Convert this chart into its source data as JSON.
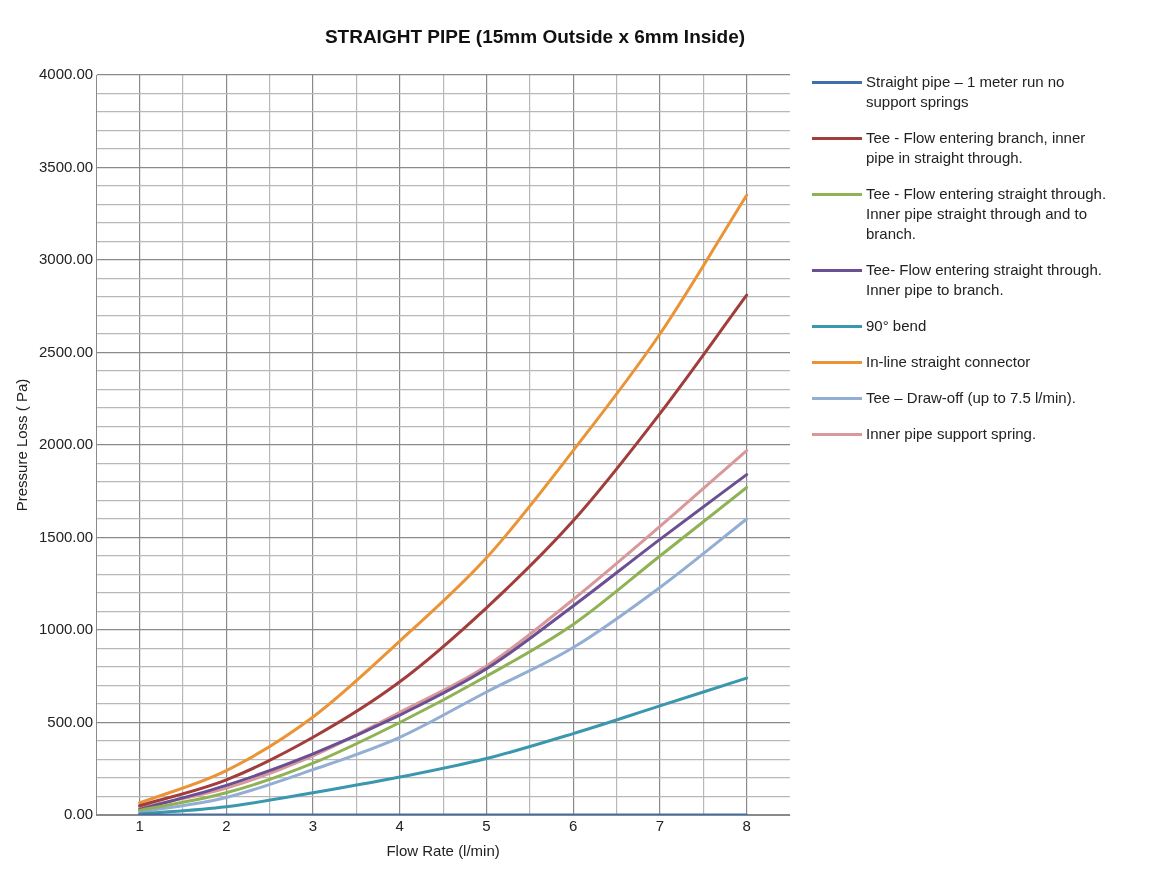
{
  "chart_data": {
    "type": "line",
    "title": "STRAIGHT PIPE (15mm Outside x 6mm Inside)",
    "xlabel": "Flow Rate (l/min)",
    "ylabel": "Pressure Loss ( Pa)",
    "x": [
      1,
      2,
      3,
      4,
      5,
      6,
      7,
      8
    ],
    "xlim": [
      0.5,
      8.5
    ],
    "xticks": [
      1,
      {
        "value": 1.5,
        "label": null
      },
      2,
      {
        "value": 2.5,
        "label": null
      },
      3,
      {
        "value": 3.5,
        "label": null
      },
      4,
      {
        "value": 4.5,
        "label": null
      },
      5,
      {
        "value": 5.5,
        "label": null
      },
      6,
      {
        "value": 6.5,
        "label": null
      },
      7,
      {
        "value": 7.5,
        "label": null
      },
      8
    ],
    "ylim": [
      0,
      4000
    ],
    "yticks": [
      {
        "value": 0,
        "label": "0.00"
      },
      {
        "value": 100,
        "label": null
      },
      {
        "value": 200,
        "label": null
      },
      {
        "value": 300,
        "label": null
      },
      {
        "value": 400,
        "label": null
      },
      {
        "value": 500,
        "label": "500.00"
      },
      {
        "value": 600,
        "label": null
      },
      {
        "value": 700,
        "label": null
      },
      {
        "value": 800,
        "label": null
      },
      {
        "value": 900,
        "label": null
      },
      {
        "value": 1000,
        "label": "1000.00"
      },
      {
        "value": 1100,
        "label": null
      },
      {
        "value": 1200,
        "label": null
      },
      {
        "value": 1300,
        "label": null
      },
      {
        "value": 1400,
        "label": null
      },
      {
        "value": 1500,
        "label": "1500.00"
      },
      {
        "value": 1600,
        "label": null
      },
      {
        "value": 1700,
        "label": null
      },
      {
        "value": 1800,
        "label": null
      },
      {
        "value": 1900,
        "label": null
      },
      {
        "value": 2000,
        "label": "2000.00"
      },
      {
        "value": 2100,
        "label": null
      },
      {
        "value": 2200,
        "label": null
      },
      {
        "value": 2300,
        "label": null
      },
      {
        "value": 2400,
        "label": null
      },
      {
        "value": 2500,
        "label": "2500.00"
      },
      {
        "value": 2600,
        "label": null
      },
      {
        "value": 2700,
        "label": null
      },
      {
        "value": 2800,
        "label": null
      },
      {
        "value": 2900,
        "label": null
      },
      {
        "value": 3000,
        "label": "3000.00"
      },
      {
        "value": 3100,
        "label": null
      },
      {
        "value": 3200,
        "label": null
      },
      {
        "value": 3300,
        "label": null
      },
      {
        "value": 3400,
        "label": null
      },
      {
        "value": 3500,
        "label": "3500.00"
      },
      {
        "value": 3600,
        "label": null
      },
      {
        "value": 3700,
        "label": null
      },
      {
        "value": 3800,
        "label": null
      },
      {
        "value": 3900,
        "label": null
      },
      {
        "value": 4000,
        "label": "4000.00"
      }
    ],
    "grid": true,
    "legend": "right",
    "marker": "none",
    "line_style": "solid",
    "series": [
      {
        "name": "Straight pipe – 1 meter run no support springs",
        "color": "#3f6fb0",
        "values": [
          0,
          0,
          0,
          0,
          0,
          0,
          0,
          0
        ]
      },
      {
        "name": "Tee - Flow entering branch, inner pipe in straight through.",
        "color": "#a13d3b",
        "values": [
          50,
          190,
          420,
          720,
          1120,
          1590,
          2170,
          2810
        ]
      },
      {
        "name": "Tee - Flow entering straight through. Inner pipe straight through and to branch.",
        "color": "#8fb254",
        "values": [
          25,
          120,
          280,
          500,
          750,
          1030,
          1400,
          1770
        ]
      },
      {
        "name": "Tee- Flow entering straight through. Inner pipe to branch.",
        "color": "#6a4f93",
        "values": [
          30,
          160,
          330,
          540,
          790,
          1130,
          1490,
          1840
        ]
      },
      {
        "name": "90° bend",
        "color": "#3a97ad",
        "values": [
          5,
          45,
          120,
          205,
          305,
          440,
          590,
          740
        ]
      },
      {
        "name": "In-line straight connector",
        "color": "#eb9436",
        "values": [
          65,
          240,
          530,
          940,
          1390,
          1970,
          2600,
          3350
        ]
      },
      {
        "name": "Tee – Draw-off (up to 7.5 l/min).",
        "color": "#93aed4",
        "values": [
          15,
          95,
          245,
          420,
          665,
          905,
          1230,
          1600
        ]
      },
      {
        "name": "Inner pipe support spring.",
        "color": "#d9989a",
        "values": [
          40,
          145,
          320,
          555,
          805,
          1165,
          1560,
          1970
        ]
      }
    ]
  }
}
